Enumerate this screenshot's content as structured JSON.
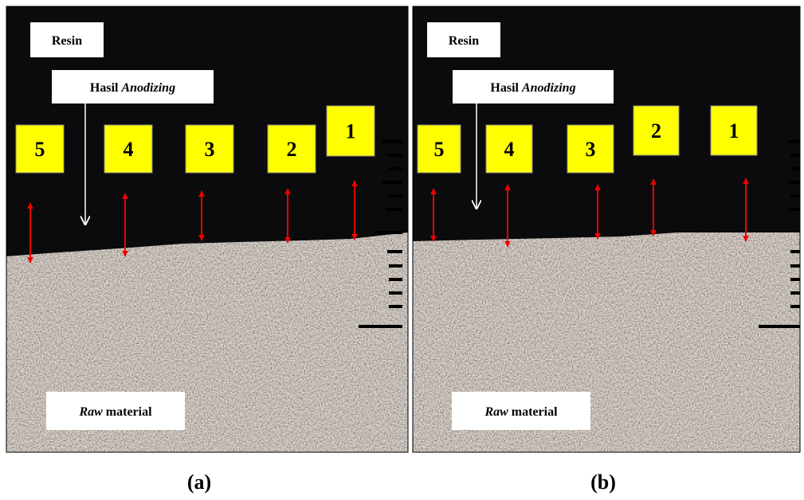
{
  "panels": [
    {
      "caption": "(a)",
      "resin": "Resin",
      "anodizing": {
        "prefix": "Hasil",
        "italic": "Anodizing"
      },
      "raw": {
        "italic": "Raw",
        "suffix": "material"
      },
      "points": [
        5,
        4,
        3,
        2,
        1
      ]
    },
    {
      "caption": "(b)",
      "resin": "Resin",
      "anodizing": {
        "prefix": "Hasil",
        "italic": "Anodizing"
      },
      "raw": {
        "italic": "Raw",
        "suffix": "material"
      },
      "points": [
        5,
        4,
        3,
        2,
        1
      ]
    }
  ]
}
